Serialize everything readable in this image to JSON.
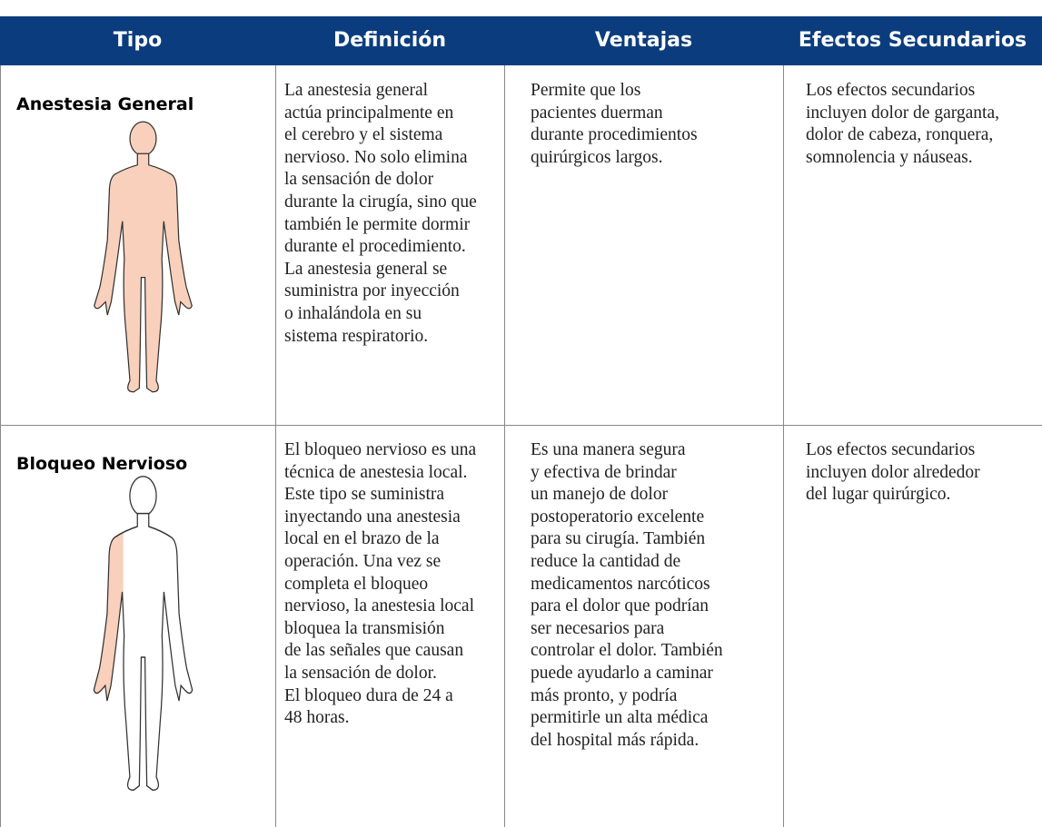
{
  "table": {
    "header": [
      "Tipo",
      "Definición",
      "Ventajas",
      "Efectos Secundarios"
    ],
    "rows": [
      {
        "type": "Anestesia General",
        "definition": [
          "La anestesia general",
          "actúa principalmente en",
          "el cerebro y el sistema",
          "nervioso. No solo elimina",
          "la sensación de dolor",
          "durante la cirugía, sino que",
          "también le permite dormir",
          "durante el procedimiento.",
          "La anestesia general se",
          "suministra por inyección",
          "o inhalándola en su",
          "sistema respiratorio."
        ],
        "advantages": [
          "Permite que los",
          "pacientes duerman",
          "durante procedimientos",
          "quirúrgicos largos."
        ],
        "side_effects": [
          "Los efectos secundarios",
          "incluyen dolor de garganta,",
          "dolor de cabeza, ronquera,",
          "somnolencia y náuseas."
        ]
      },
      {
        "type": "Bloqueo Nervioso",
        "definition": [
          "El bloqueo nervioso es una",
          "técnica de anestesia local.",
          "Este tipo se suministra",
          "inyectando una anestesia",
          "local en el brazo de la",
          "operación. Una vez se",
          "completa el bloqueo",
          "nervioso, la anestesia local",
          "bloquea la transmisión",
          "de las señales que causan",
          "la sensación de dolor.",
          "El bloqueo dura de 24 a",
          "48 horas."
        ],
        "advantages": [
          "Es una manera segura",
          "y efectiva de brindar",
          "un manejo de dolor",
          "postoperatorio excelente",
          "para su cirugía. También",
          "reduce la cantidad de",
          "medicamentos narcóticos",
          "para el dolor que podrían",
          "ser necesarios para",
          "controlar el dolor. También",
          "puede ayudarlo a caminar",
          "más pronto, y podría",
          "permitirle un alta médica",
          "del hospital más rápida."
        ],
        "side_effects": [
          "Los efectos secundarios",
          "incluyen dolor alrededor",
          "del lugar quirúrgico."
        ]
      }
    ]
  }
}
